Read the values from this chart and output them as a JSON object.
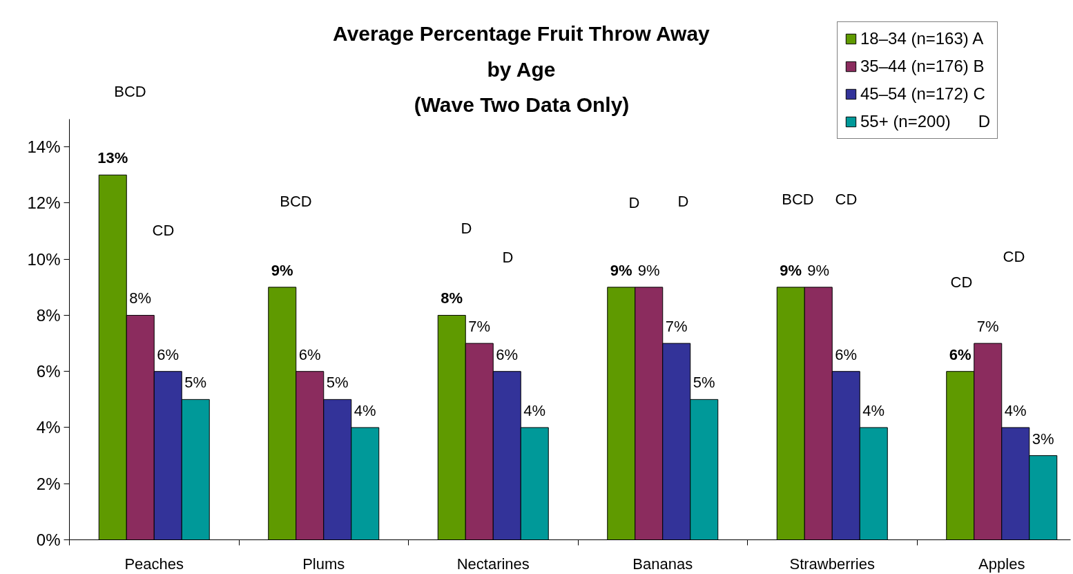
{
  "chart_data": {
    "type": "bar",
    "title": "Average Percentage Fruit Throw Away\nby Age\n(Wave Two Data Only)",
    "categories": [
      "Peaches",
      "Plums",
      "Nectarines",
      "Bananas",
      "Strawberries",
      "Apples"
    ],
    "series": [
      {
        "name": "18–34 (n=163) A",
        "color": "#5f9a00",
        "values": [
          13,
          9,
          8,
          9,
          9,
          6
        ],
        "value_labels": [
          "13%",
          "9%",
          "8%",
          "9%",
          "9%",
          "6%"
        ]
      },
      {
        "name": "35–44 (n=176) B",
        "color": "#8b2c5e",
        "values": [
          8,
          6,
          7,
          9,
          9,
          7
        ],
        "value_labels": [
          "8%",
          "6%",
          "7%",
          "9%",
          "9%",
          "7%"
        ]
      },
      {
        "name": "45–54 (n=172) C",
        "color": "#333399",
        "values": [
          6,
          5,
          6,
          7,
          6,
          4
        ],
        "value_labels": [
          "6%",
          "5%",
          "6%",
          "7%",
          "6%",
          "4%"
        ]
      },
      {
        "name": "55+ (n=200)      D",
        "color": "#009999",
        "values": [
          5,
          4,
          4,
          5,
          4,
          3
        ],
        "value_labels": [
          "5%",
          "4%",
          "4%",
          "5%",
          "4%",
          "3%"
        ]
      }
    ],
    "ylim": [
      0,
      15
    ],
    "yticks": [
      {
        "value": 0,
        "label": "0%"
      },
      {
        "value": 2,
        "label": "2%"
      },
      {
        "value": 4,
        "label": "4%"
      },
      {
        "value": 6,
        "label": "6%"
      },
      {
        "value": 8,
        "label": "8%"
      },
      {
        "value": 10,
        "label": "10%"
      },
      {
        "value": 12,
        "label": "12%"
      },
      {
        "value": 14,
        "label": "14%"
      }
    ],
    "grid": false,
    "legend": "top right",
    "annotations": [
      "BCD",
      "CD",
      "BCD",
      "D",
      "D",
      "D",
      "D",
      "BCD",
      "CD",
      "CD",
      "CD"
    ]
  }
}
